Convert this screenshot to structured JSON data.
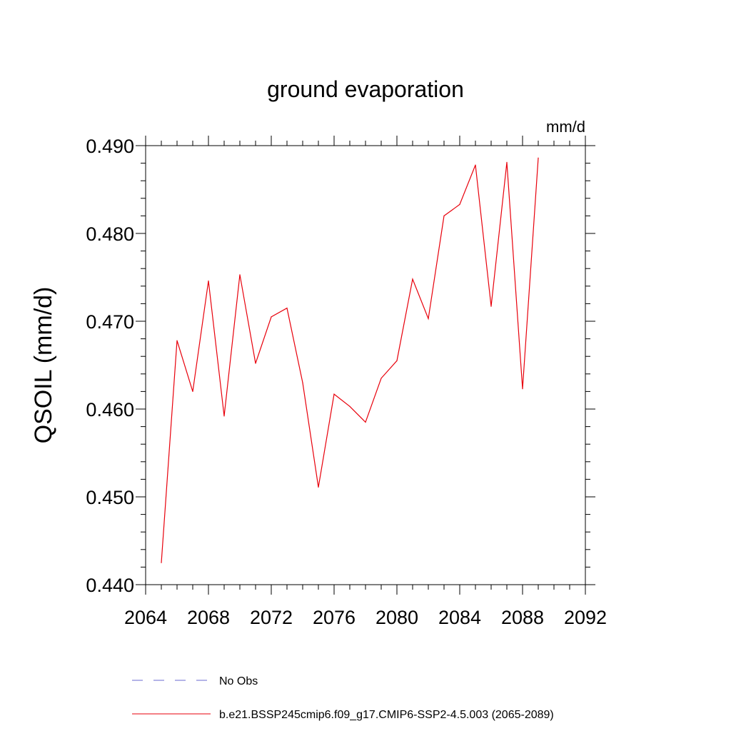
{
  "chart_data": {
    "type": "line",
    "title": "ground evaporation",
    "units_label": "mm/d",
    "ylabel": "QSOIL  (mm/d)",
    "xlabel": "",
    "xlim": [
      2064,
      2092
    ],
    "ylim": [
      0.44,
      0.49
    ],
    "x_ticks": [
      "2064",
      "2068",
      "2072",
      "2076",
      "2080",
      "2084",
      "2088",
      "2092"
    ],
    "y_ticks": [
      "0.440",
      "0.450",
      "0.460",
      "0.470",
      "0.480",
      "0.490"
    ],
    "grid": false,
    "legend_position": "bottom",
    "legend": [
      {
        "name": "No Obs",
        "style": "dashed",
        "color": "#6a6ad0"
      },
      {
        "name": "b.e21.BSSP245cmip6.f09_g17.CMIP6-SSP2-4.5.003 (2065-2089)",
        "style": "solid",
        "color": "#e8000b"
      }
    ],
    "series": [
      {
        "name": "b.e21.BSSP245cmip6.f09_g17.CMIP6-SSP2-4.5.003 (2065-2089)",
        "color": "#e8000b",
        "x": [
          2065,
          2066,
          2067,
          2068,
          2069,
          2070,
          2071,
          2072,
          2073,
          2074,
          2075,
          2076,
          2077,
          2078,
          2079,
          2080,
          2081,
          2082,
          2083,
          2084,
          2085,
          2086,
          2087,
          2088,
          2089
        ],
        "y": [
          0.4425,
          0.4678,
          0.462,
          0.4746,
          0.4592,
          0.4753,
          0.4652,
          0.4705,
          0.4715,
          0.463,
          0.4511,
          0.4617,
          0.4603,
          0.4585,
          0.4635,
          0.4655,
          0.4748,
          0.4703,
          0.482,
          0.4833,
          0.4878,
          0.4717,
          0.4881,
          0.4623,
          0.4886
        ]
      }
    ]
  }
}
